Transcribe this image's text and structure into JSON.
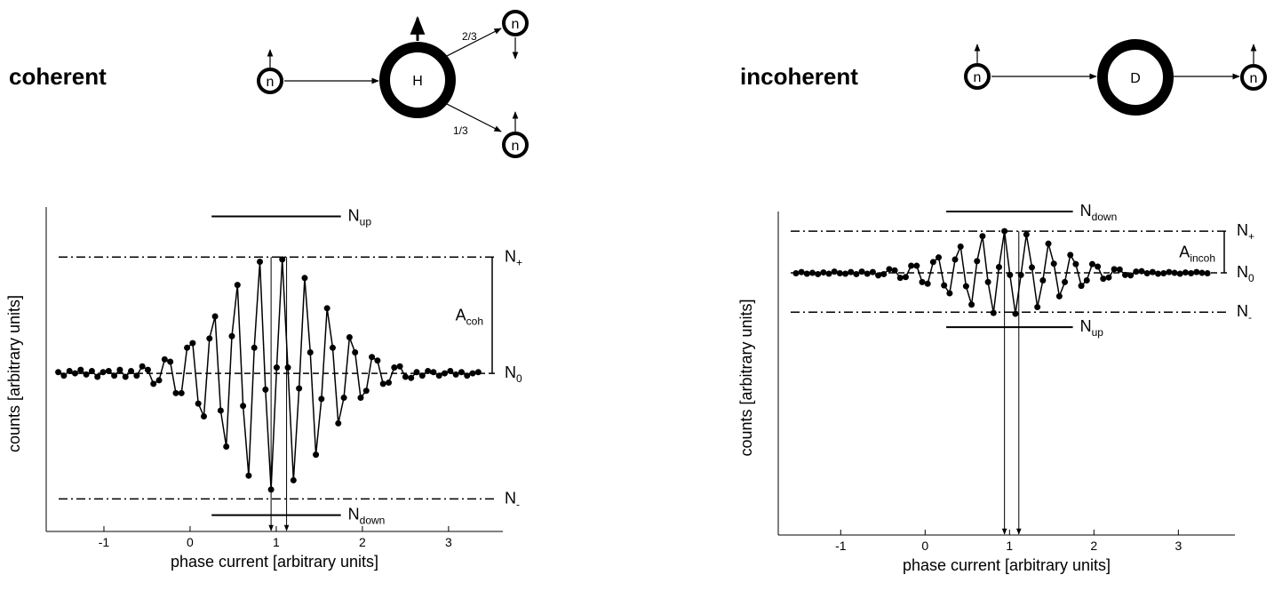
{
  "diagrams": [
    {
      "title": "coherent",
      "nodes": [
        "n",
        "H",
        "n",
        "n"
      ],
      "branches": [
        "2/3",
        "1/3"
      ]
    },
    {
      "title": "incoherent",
      "nodes": [
        "n",
        "D",
        "n"
      ]
    }
  ],
  "chart_data": [
    {
      "type": "line",
      "xlabel": "phase current  [arbitrary units]",
      "ylabel": "counts  [arbitrary units]",
      "xlim": [
        -1.67,
        3.63
      ],
      "ylim": [
        -1.36,
        1.43
      ],
      "xticks": [
        -1,
        0,
        1,
        2,
        3
      ],
      "color": "#000000",
      "x": [
        -1.53,
        -1.465,
        -1.4,
        -1.335,
        -1.27,
        -1.205,
        -1.14,
        -1.075,
        -1.01,
        -0.945,
        -0.88,
        -0.815,
        -0.75,
        -0.685,
        -0.62,
        -0.555,
        -0.49,
        -0.425,
        -0.36,
        -0.295,
        -0.23,
        -0.165,
        -0.1,
        -0.035,
        0.03,
        0.095,
        0.16,
        0.225,
        0.29,
        0.355,
        0.42,
        0.485,
        0.55,
        0.615,
        0.68,
        0.745,
        0.81,
        0.875,
        0.94,
        1.005,
        1.07,
        1.135,
        1.2,
        1.265,
        1.33,
        1.395,
        1.46,
        1.525,
        1.59,
        1.655,
        1.72,
        1.785,
        1.85,
        1.915,
        1.98,
        2.045,
        2.11,
        2.175,
        2.24,
        2.305,
        2.37,
        2.435,
        2.5,
        2.565,
        2.63,
        2.695,
        2.76,
        2.825,
        2.89,
        2.955,
        3.02,
        3.085,
        3.15,
        3.215,
        3.28,
        3.345
      ],
      "values": [
        0.01,
        -0.02,
        0.02,
        0.0,
        0.03,
        -0.01,
        0.02,
        -0.03,
        0.01,
        0.02,
        -0.02,
        0.03,
        -0.03,
        0.02,
        -0.02,
        0.06,
        0.03,
        -0.09,
        -0.06,
        0.12,
        0.1,
        -0.17,
        -0.17,
        0.22,
        0.26,
        -0.26,
        -0.37,
        0.3,
        0.49,
        -0.32,
        -0.63,
        0.32,
        0.76,
        -0.28,
        -0.88,
        0.22,
        0.96,
        -0.14,
        -1.0,
        0.05,
        0.98,
        0.05,
        -0.92,
        -0.13,
        0.82,
        0.18,
        -0.7,
        -0.22,
        0.56,
        0.22,
        -0.43,
        -0.21,
        0.31,
        0.18,
        -0.21,
        -0.15,
        0.14,
        0.11,
        -0.09,
        -0.08,
        0.05,
        0.06,
        -0.03,
        -0.04,
        0.01,
        -0.02,
        0.02,
        0.01,
        -0.02,
        0.0,
        0.02,
        -0.01,
        0.01,
        -0.02,
        0.0,
        0.01
      ],
      "levels": [
        {
          "label": "N",
          "sub": "up",
          "value": 1.35,
          "x": [
            0.25,
            1.75
          ],
          "style": "solid"
        },
        {
          "label": "N",
          "sub": "+",
          "value": 1,
          "style": "dashdot"
        },
        {
          "label": "N",
          "sub": "0",
          "value": 0,
          "style": "dashed"
        },
        {
          "label": "N",
          "sub": "-",
          "value": -1.08,
          "style": "dashdot"
        },
        {
          "label": "N",
          "sub": "down",
          "value": -1.22,
          "x": [
            0.25,
            1.75
          ],
          "style": "solid"
        }
      ],
      "amplitude": {
        "label": "A",
        "sub": "coh",
        "from": 0,
        "to": 1
      },
      "arrows_x": [
        0.94,
        1.12
      ]
    },
    {
      "type": "line",
      "xlabel": "phase current  [arbitrary units]",
      "ylabel": "counts  [arbitrary units]",
      "xlim": [
        -1.74,
        3.67
      ],
      "ylim": [
        -6.28,
        1.47
      ],
      "xticks": [
        -1,
        0,
        1,
        2,
        3
      ],
      "color": "#000000",
      "x": [
        -1.53,
        -1.465,
        -1.4,
        -1.335,
        -1.27,
        -1.205,
        -1.14,
        -1.075,
        -1.01,
        -0.945,
        -0.88,
        -0.815,
        -0.75,
        -0.685,
        -0.62,
        -0.555,
        -0.49,
        -0.425,
        -0.36,
        -0.295,
        -0.23,
        -0.165,
        -0.1,
        -0.035,
        0.03,
        0.095,
        0.16,
        0.225,
        0.29,
        0.355,
        0.42,
        0.485,
        0.55,
        0.615,
        0.68,
        0.745,
        0.81,
        0.875,
        0.94,
        1.005,
        1.07,
        1.135,
        1.2,
        1.265,
        1.33,
        1.395,
        1.46,
        1.525,
        1.59,
        1.655,
        1.72,
        1.785,
        1.85,
        1.915,
        1.98,
        2.045,
        2.11,
        2.175,
        2.24,
        2.305,
        2.37,
        2.435,
        2.5,
        2.565,
        2.63,
        2.695,
        2.76,
        2.825,
        2.89,
        2.955,
        3.02,
        3.085,
        3.15,
        3.215,
        3.28,
        3.345
      ],
      "values": [
        -0.01,
        0.02,
        -0.02,
        0.0,
        -0.03,
        0.01,
        -0.02,
        0.03,
        -0.01,
        -0.02,
        0.02,
        -0.03,
        0.03,
        -0.02,
        0.02,
        -0.06,
        -0.03,
        0.09,
        0.06,
        -0.12,
        -0.1,
        0.17,
        0.17,
        -0.22,
        -0.26,
        0.26,
        0.37,
        -0.3,
        -0.49,
        0.32,
        0.63,
        -0.32,
        -0.76,
        0.28,
        0.88,
        -0.22,
        -0.96,
        0.14,
        1.0,
        -0.05,
        -0.98,
        -0.05,
        0.92,
        0.13,
        -0.82,
        -0.18,
        0.7,
        0.22,
        -0.56,
        -0.22,
        0.43,
        0.21,
        -0.31,
        -0.18,
        0.21,
        0.15,
        -0.14,
        -0.11,
        0.09,
        0.08,
        -0.05,
        -0.06,
        0.03,
        0.04,
        -0.01,
        0.02,
        -0.02,
        -0.01,
        0.02,
        0.0,
        -0.02,
        0.01,
        -0.01,
        0.02,
        0.0,
        -0.01
      ],
      "levels": [
        {
          "label": "N",
          "sub": "down",
          "value": 1.47,
          "x": [
            0.25,
            1.75
          ],
          "style": "solid"
        },
        {
          "label": "N",
          "sub": "+",
          "value": 1,
          "style": "dashdot"
        },
        {
          "label": "N",
          "sub": "0",
          "value": 0,
          "style": "dashed"
        },
        {
          "label": "N",
          "sub": "-",
          "value": -0.94,
          "style": "dashdot"
        },
        {
          "label": "N",
          "sub": "up",
          "value": -1.3,
          "x": [
            0.25,
            1.75
          ],
          "style": "solid"
        }
      ],
      "amplitude": {
        "label": "A",
        "sub": "incoh",
        "from": 0,
        "to": 1
      },
      "arrows_x": [
        0.94,
        1.11
      ]
    }
  ]
}
